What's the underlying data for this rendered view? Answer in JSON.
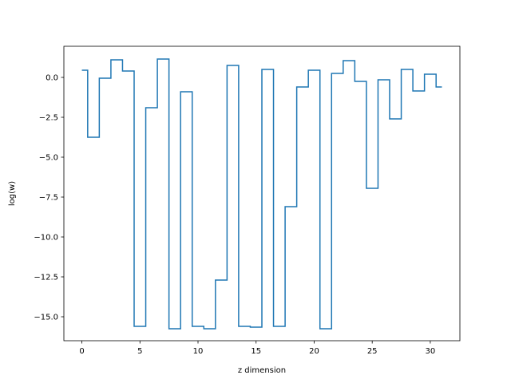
{
  "chart_data": {
    "type": "line",
    "drawstyle": "steps-mid",
    "title": "",
    "xlabel": "z dimension",
    "ylabel": "log(w)",
    "xlim": [
      -1.55,
      32.55
    ],
    "ylim": [
      -16.5,
      1.95
    ],
    "grid": false,
    "color": "#1f77b4",
    "xticks": [
      0,
      5,
      10,
      15,
      20,
      25,
      30
    ],
    "xtick_labels": [
      "0",
      "5",
      "10",
      "15",
      "20",
      "25",
      "30"
    ],
    "yticks": [
      0.0,
      -2.5,
      -5.0,
      -7.5,
      -10.0,
      -12.5,
      -15.0
    ],
    "ytick_labels": [
      "0.0",
      "−2.5",
      "−5.0",
      "−7.5",
      "−10.0",
      "−12.5",
      "−15.0"
    ],
    "x": [
      0,
      1,
      2,
      3,
      4,
      5,
      6,
      7,
      8,
      9,
      10,
      11,
      12,
      13,
      14,
      15,
      16,
      17,
      18,
      19,
      20,
      21,
      22,
      23,
      24,
      25,
      26,
      27,
      28,
      29,
      30,
      31
    ],
    "values": [
      0.45,
      -3.75,
      -0.05,
      1.1,
      0.4,
      -15.6,
      -1.9,
      1.15,
      -15.75,
      -0.9,
      -15.6,
      -15.75,
      -12.7,
      0.75,
      -15.6,
      -15.65,
      0.5,
      -15.6,
      -8.1,
      -0.6,
      0.45,
      -15.75,
      0.25,
      1.05,
      -0.25,
      -6.95,
      -0.15,
      -2.6,
      0.5,
      -0.85,
      0.2,
      -0.6
    ]
  }
}
